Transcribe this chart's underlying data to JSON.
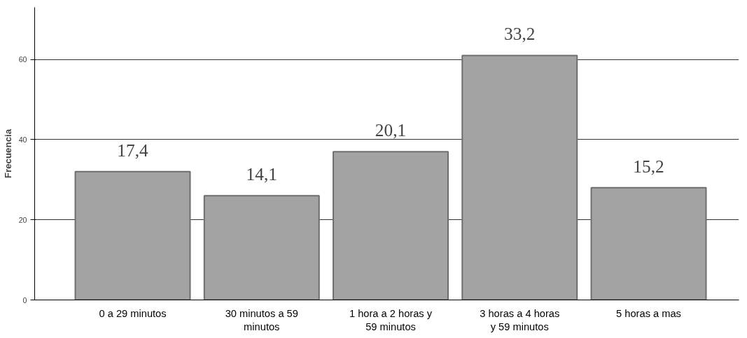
{
  "chart_data": {
    "type": "bar",
    "ylabel": "Frecuencia",
    "categories": [
      "0 a 29 minutos",
      "30 minutos a 59 minutos",
      "1 hora a 2 horas y 59 minutos",
      "3 horas a 4 horas y 59 minutos",
      "5 horas a mas"
    ],
    "values": [
      32,
      26,
      37,
      61,
      28
    ],
    "annotations": [
      {
        "text": "17,4",
        "x": "0 a 29 minutos",
        "y": 32
      },
      {
        "text": "14,1",
        "x": "30 minutos a 59 minutos",
        "y": 26
      },
      {
        "text": "20,1",
        "x": "1 hora a 2 horas y 59 minutos",
        "y": 37
      },
      {
        "text": "33,2",
        "x": "3 horas a 4 horas y 59 minutos",
        "y": 61
      },
      {
        "text": "15,2",
        "x": "5 horas a mas",
        "y": 28
      }
    ],
    "color": "#a3a3a3",
    "ylim": [
      0,
      73
    ],
    "yticks": [
      0,
      20,
      40,
      60
    ],
    "grid": "y"
  }
}
